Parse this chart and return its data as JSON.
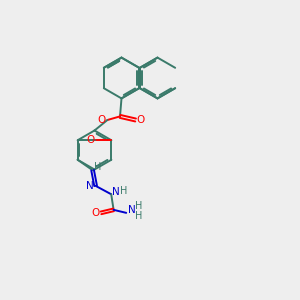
{
  "background_color": "#eeeeee",
  "bond_color": "#3a7a6a",
  "atom_colors": {
    "O": "#ff0000",
    "N": "#0000cd",
    "C": "#3a7a6a",
    "H": "#3a7a6a"
  },
  "figsize": [
    3.0,
    3.0
  ],
  "dpi": 100,
  "bond_lw": 1.4,
  "font_size": 7.5
}
